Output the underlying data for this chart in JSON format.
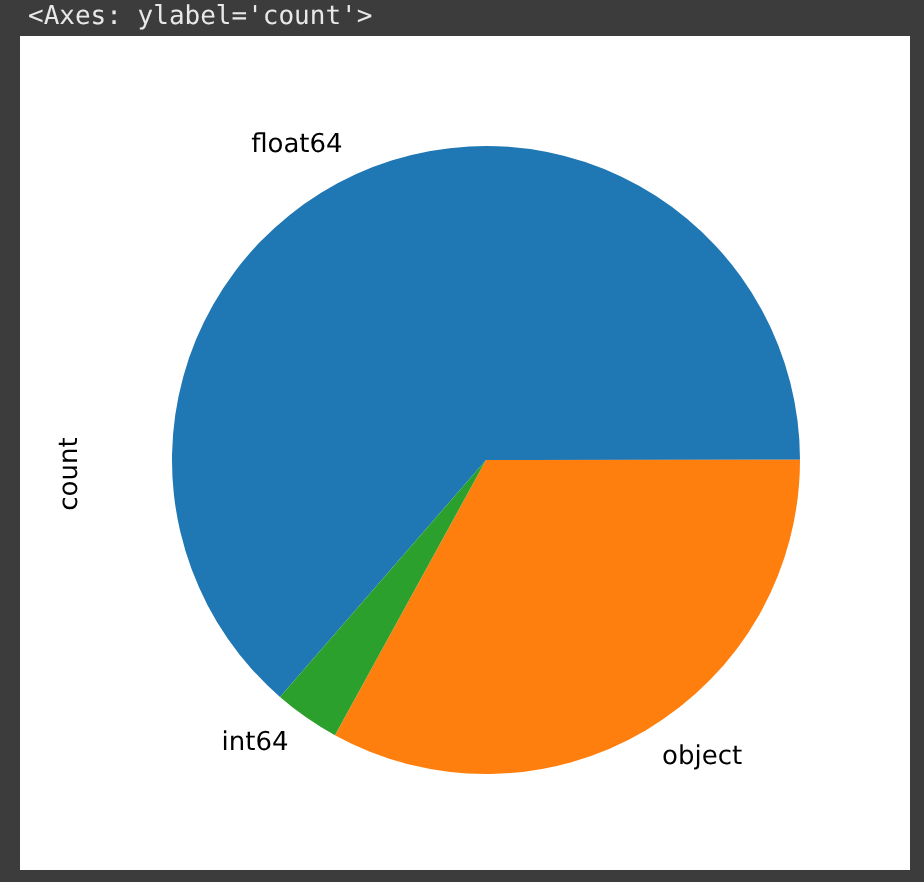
{
  "chart_data": {
    "type": "pie",
    "ylabel": "count",
    "annotations": [
      "<Axes: ylabel='count'>"
    ],
    "categories": [
      "float64",
      "object",
      "int64"
    ],
    "values": [
      63.6,
      33.0,
      3.4
    ],
    "colors": [
      "#1f77b4",
      "#ff7f0e",
      "#2ca02c"
    ],
    "legend": false
  }
}
